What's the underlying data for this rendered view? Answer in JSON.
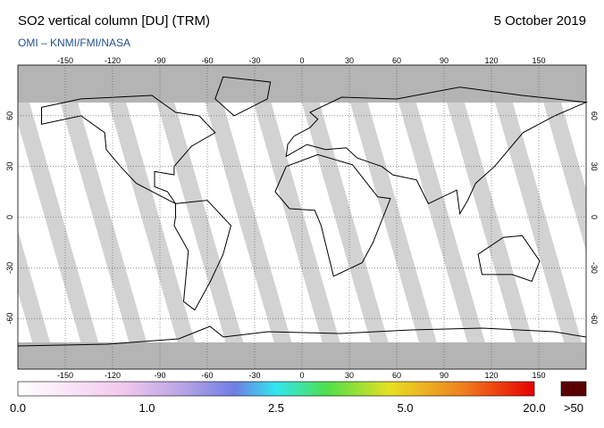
{
  "title": "SO2 vertical column [DU] (TRM)",
  "date": "5 October 2019",
  "credit": "OMI  –  KNMI/FMI/NASA",
  "map": {
    "xlim": [
      -180,
      180
    ],
    "ylim": [
      -90,
      90
    ],
    "lon_ticks": [
      -150,
      -120,
      -90,
      -60,
      -30,
      0,
      30,
      60,
      90,
      120,
      150
    ],
    "lat_ticks": [
      60,
      30,
      0,
      -30,
      -60
    ]
  },
  "colorbar": {
    "labels": [
      "0.0",
      "1.0",
      "2.5",
      "5.0",
      "20.0"
    ],
    "overflow_label": ">50"
  }
}
